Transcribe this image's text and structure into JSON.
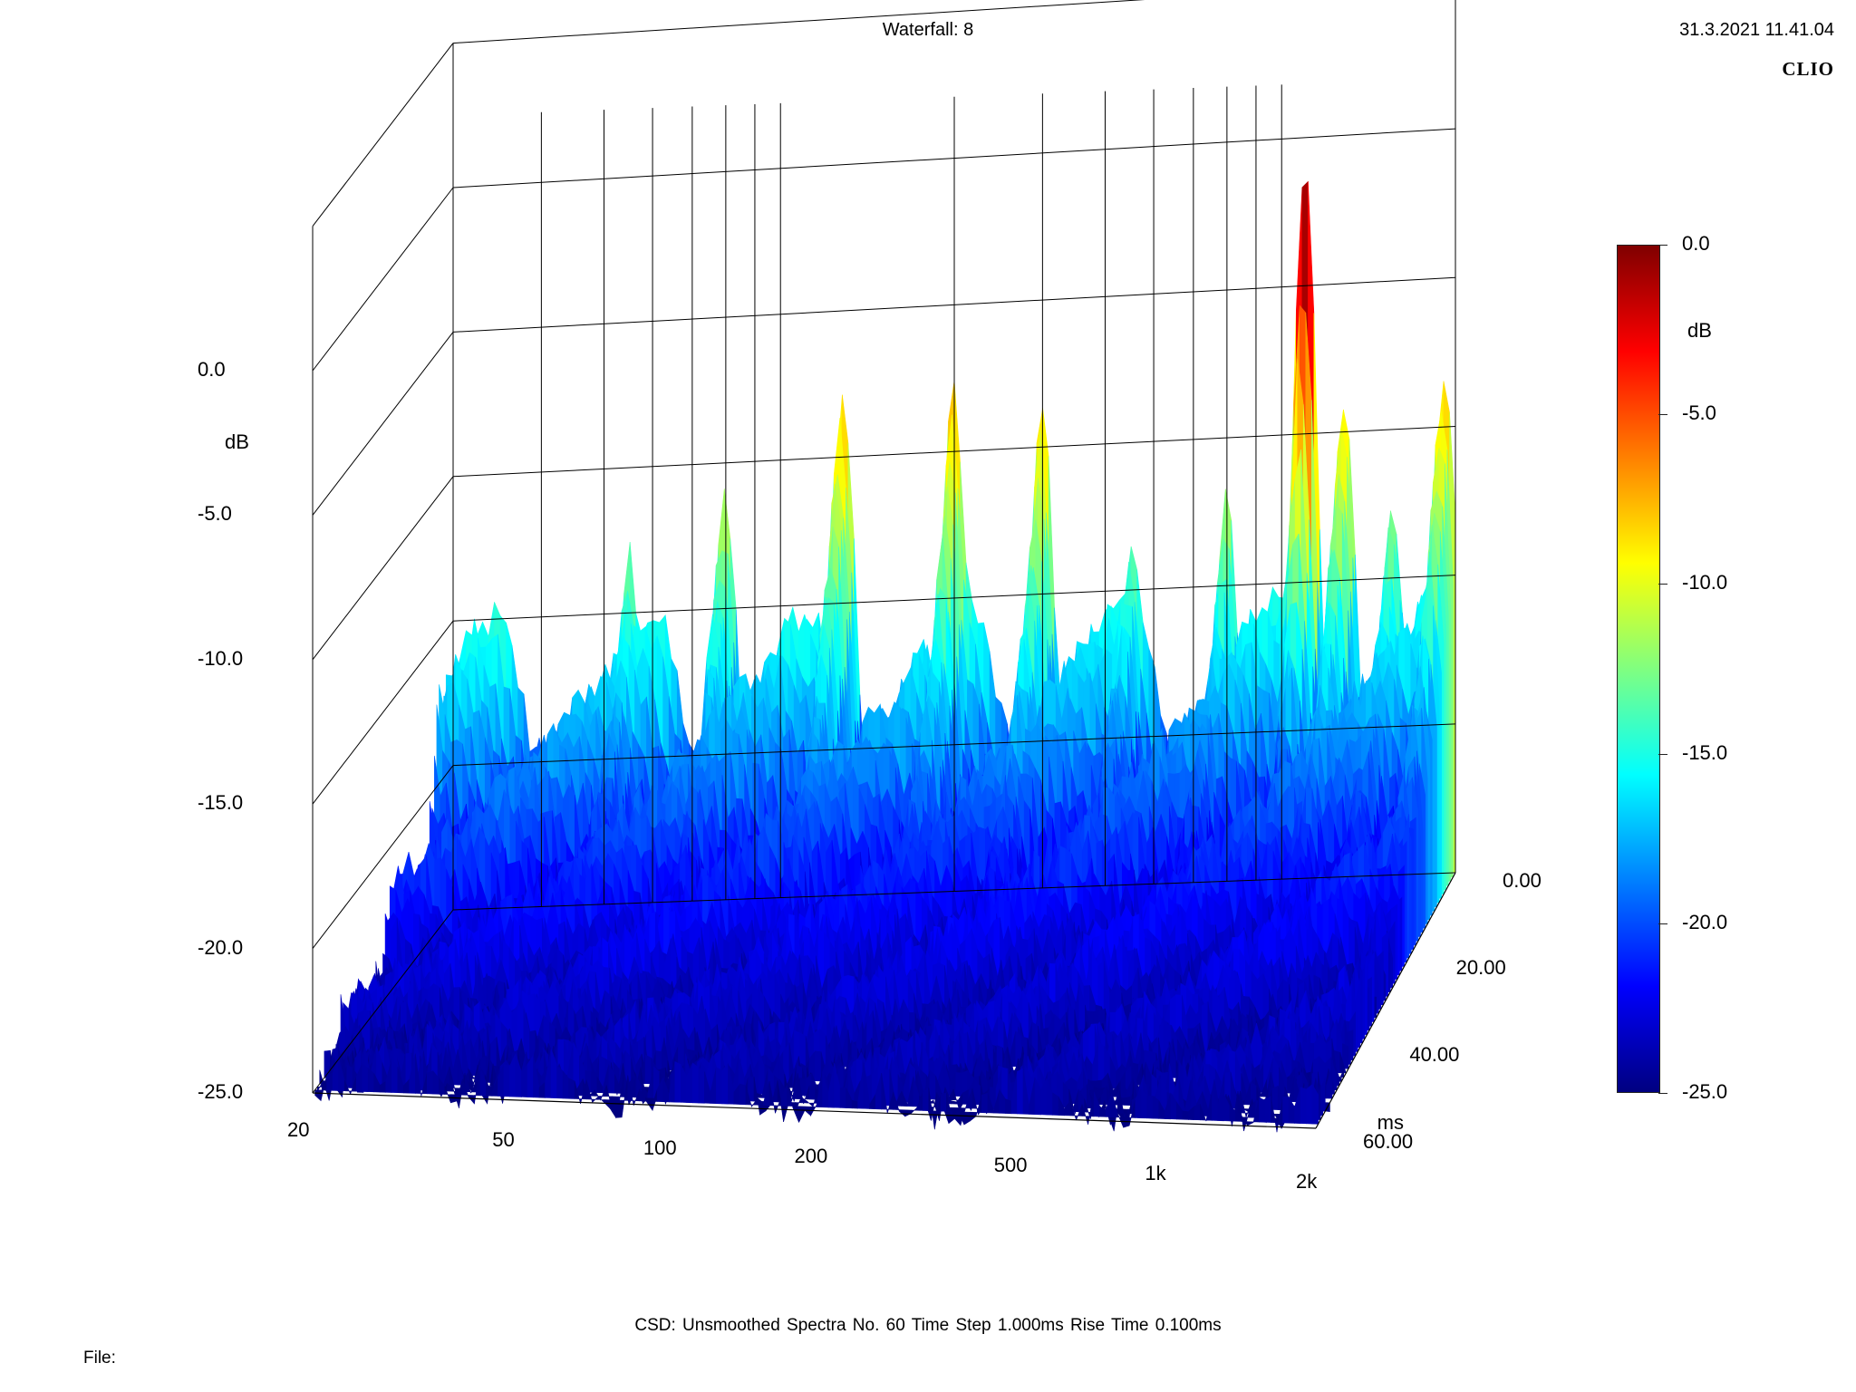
{
  "header": {
    "title": "Waterfall: 8",
    "timestamp": "31.3.2021 11.41.04",
    "logo": "CLIO"
  },
  "footer": {
    "info": "CSD:   Unsmoothed   Spectra No. 60   Time Step 1.000ms   Rise Time 0.100ms",
    "file_label": "File:"
  },
  "chart_data": {
    "type": "waterfall",
    "title": "Waterfall: 8",
    "x_axis": {
      "label": "",
      "scale": "log",
      "range": [
        20,
        2000
      ],
      "ticks": [
        20,
        50,
        100,
        200,
        500,
        1000,
        2000
      ],
      "tick_labels": [
        "20",
        "50",
        "100",
        "200",
        "500",
        "1k",
        "2k"
      ]
    },
    "y_axis": {
      "label": "dB",
      "range": [
        -25,
        0
      ],
      "ticks": [
        0,
        -5,
        -10,
        -15,
        -20,
        -25
      ],
      "tick_labels": [
        "0.0",
        "-5.0",
        "-10.0",
        "-15.0",
        "-20.0",
        "-25.0"
      ]
    },
    "z_axis": {
      "label": "ms",
      "range": [
        0,
        60
      ],
      "ticks": [
        0,
        20,
        40,
        60
      ],
      "tick_labels": [
        "0.00",
        "20.00",
        "40.00",
        "60.00"
      ]
    },
    "colorbar": {
      "label": "dB",
      "range": [
        -25,
        0
      ],
      "tick_labels": [
        "0.0",
        "-5.0",
        "-10.0",
        "-15.0",
        "-20.0",
        "-25.0"
      ],
      "colormap": [
        "#000080",
        "#0000ff",
        "#0080ff",
        "#00ffff",
        "#80ff80",
        "#ffff00",
        "#ff8000",
        "#ff0000",
        "#800000"
      ]
    },
    "spectra_count": 60,
    "time_step_ms": 1.0,
    "first_spectrum_peaks": [
      {
        "freq_hz": 20,
        "db": -24
      },
      {
        "freq_hz": 30,
        "db": -19
      },
      {
        "freq_hz": 45,
        "db": -13
      },
      {
        "freq_hz": 70,
        "db": -11
      },
      {
        "freq_hz": 120,
        "db": -7.5
      },
      {
        "freq_hz": 200,
        "db": -7.5
      },
      {
        "freq_hz": 300,
        "db": -8.5
      },
      {
        "freq_hz": 450,
        "db": -13
      },
      {
        "freq_hz": 700,
        "db": -12
      },
      {
        "freq_hz": 1000,
        "db": 0
      },
      {
        "freq_hz": 1200,
        "db": -8.5
      },
      {
        "freq_hz": 1500,
        "db": -12
      },
      {
        "freq_hz": 1900,
        "db": -7.5
      }
    ],
    "colors": {
      "grid": "#000000",
      "background": "#ffffff"
    }
  }
}
